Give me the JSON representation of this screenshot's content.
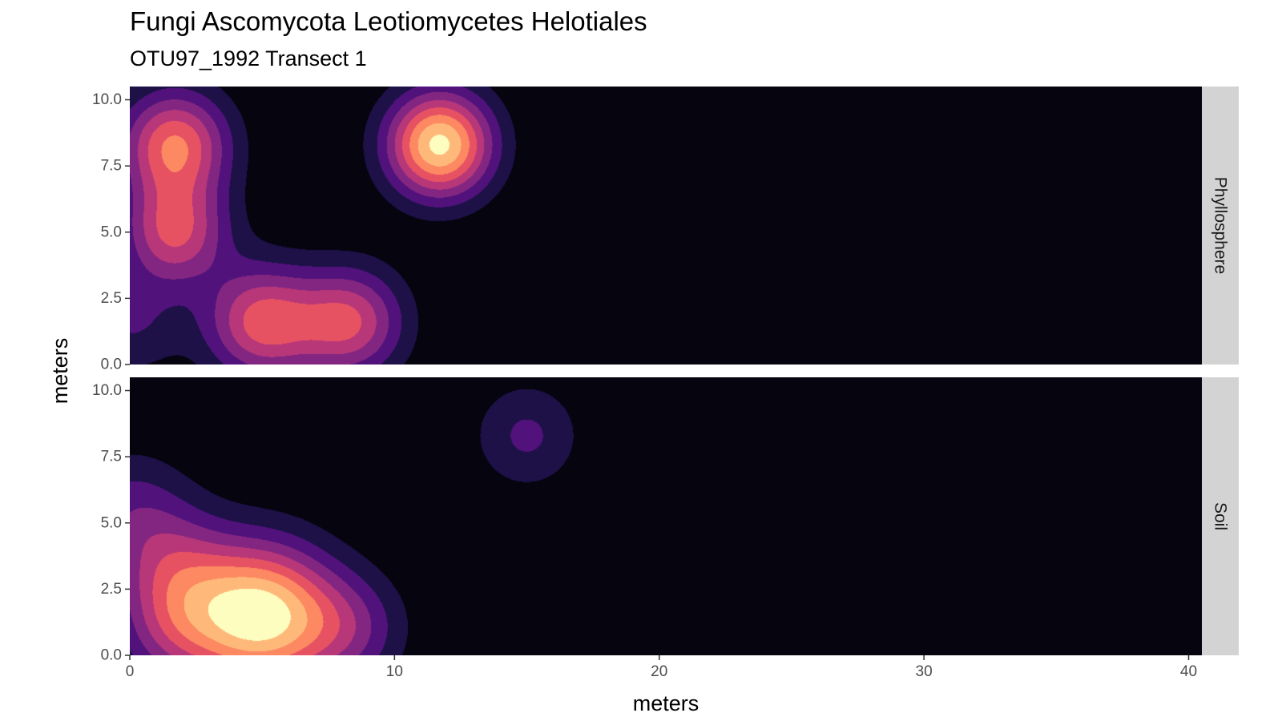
{
  "chart_data": {
    "type": "heatmap",
    "title": "Fungi Ascomycota Leotiomycetes Helotiales",
    "subtitle": "OTU97_1992 Transect 1",
    "xlabel": "meters",
    "ylabel": "meters",
    "xlim": [
      0,
      40.5
    ],
    "ylim": [
      0,
      10.5
    ],
    "x_ticks": [
      "0",
      "10",
      "20",
      "30",
      "40"
    ],
    "x_tick_values": [
      0,
      10,
      20,
      30,
      40
    ],
    "y_ticks": [
      "0.0",
      "2.5",
      "5.0",
      "7.5",
      "10.0"
    ],
    "y_tick_values": [
      0,
      2.5,
      5,
      7.5,
      10
    ],
    "color_scale": [
      "#05040f",
      "#1d1147",
      "#51127c",
      "#832681",
      "#b73779",
      "#e75263",
      "#fc8961",
      "#feb97a",
      "#fcfdbf"
    ],
    "legend": "none",
    "grid": false,
    "panels": [
      {
        "facet": "Phyllosphere",
        "hotspots": [
          {
            "x": 1.7,
            "y": 8.3,
            "intensity": 6.0,
            "sigma": 1.45
          },
          {
            "x": 1.7,
            "y": 5.0,
            "intensity": 5.0,
            "sigma": 1.4
          },
          {
            "x": 5.0,
            "y": 1.6,
            "intensity": 5.4,
            "sigma": 1.5
          },
          {
            "x": 8.3,
            "y": 1.6,
            "intensity": 5.0,
            "sigma": 1.45
          },
          {
            "x": 11.7,
            "y": 8.3,
            "intensity": 8.3,
            "sigma": 1.4
          },
          {
            "x": 0.0,
            "y": 1.6,
            "intensity": 2.0,
            "sigma": 1.4
          }
        ]
      },
      {
        "facet": "Soil",
        "hotspots": [
          {
            "x": 5.0,
            "y": 1.5,
            "intensity": 8.3,
            "sigma": 1.9
          },
          {
            "x": 1.7,
            "y": 3.3,
            "intensity": 3.0,
            "sigma": 1.6
          },
          {
            "x": 1.7,
            "y": 1.0,
            "intensity": 3.0,
            "sigma": 1.6
          },
          {
            "x": 8.3,
            "y": 1.0,
            "intensity": 2.6,
            "sigma": 1.5
          },
          {
            "x": 0.0,
            "y": 5.5,
            "intensity": 2.2,
            "sigma": 1.6
          },
          {
            "x": 15.0,
            "y": 8.3,
            "intensity": 2.2,
            "sigma": 1.4
          }
        ]
      }
    ]
  }
}
